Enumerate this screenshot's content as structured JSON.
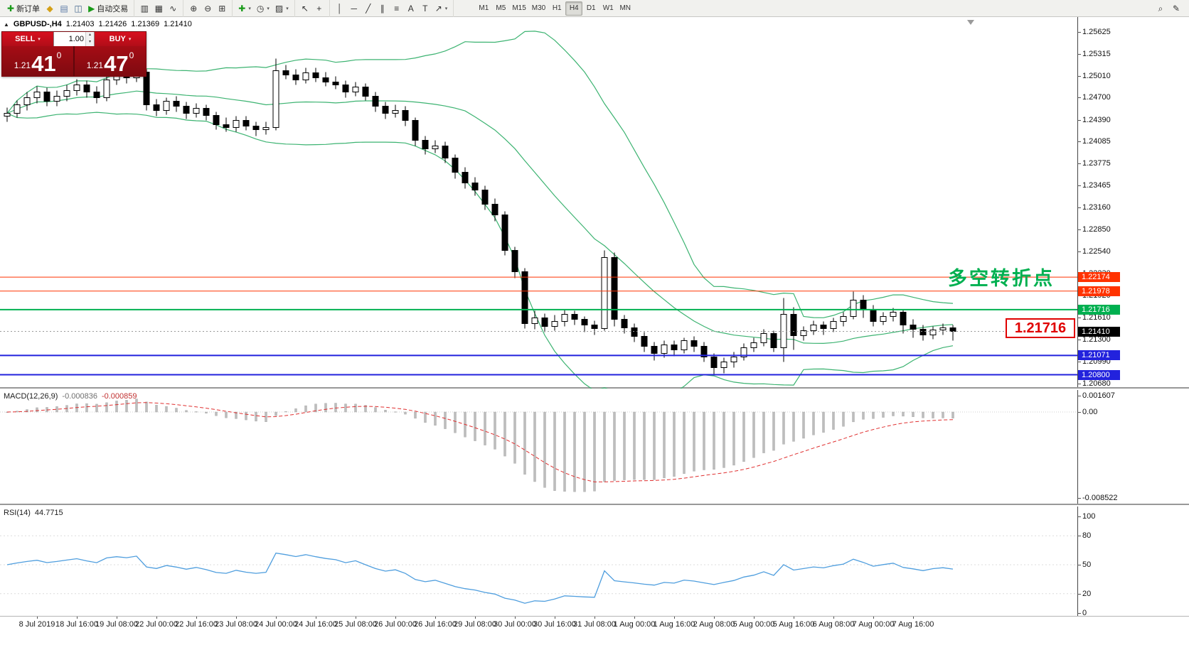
{
  "toolbar": {
    "new_order_label": "新订单",
    "autotrade_label": "自动交易",
    "timeframes": [
      "M1",
      "M5",
      "M15",
      "M30",
      "H1",
      "H4",
      "D1",
      "W1",
      "MN"
    ],
    "active_timeframe": "H4"
  },
  "icons": {
    "new_order": "✚",
    "profiles": "◆",
    "market_watch": "▤",
    "navigator": "◫",
    "autotrade_play": "▶",
    "chart_bars": "▥",
    "chart_candles": "▦",
    "chart_line": "∿",
    "zoom_in": "⊕",
    "zoom_out": "⊖",
    "tile_windows": "⊞",
    "indicators": "✚",
    "periods_clock": "◷",
    "templates": "▨",
    "cursor": "↖",
    "crosshair": "+",
    "vertical_line": "│",
    "horizontal_line": "─",
    "trendline": "╱",
    "channel": "∥",
    "fibonacci": "≡",
    "text": "A",
    "text_label": "T",
    "arrows": "↗",
    "dropdown": "▾",
    "spin_up": "▴",
    "spin_down": "▾",
    "collapse": "▲",
    "search": "⌕",
    "edit": "✎"
  },
  "symbol_header": {
    "symbol": "GBPUSD-,H4",
    "open": "1.21403",
    "high": "1.21426",
    "low": "1.21369",
    "close": "1.21410"
  },
  "trade_panel": {
    "sell_label": "SELL",
    "buy_label": "BUY",
    "volume": "1.00",
    "sell_price_prefix": "1.21",
    "sell_price_big": "41",
    "sell_price_sup": "0",
    "buy_price_prefix": "1.21",
    "buy_price_big": "47",
    "buy_price_sup": "0"
  },
  "annotations": {
    "turning_point": "多空转折点",
    "price_callout": "1.21716"
  },
  "price_scale": {
    "ticks": [
      "1.25625",
      "1.25315",
      "1.25010",
      "1.24700",
      "1.24390",
      "1.24085",
      "1.23775",
      "1.23465",
      "1.23160",
      "1.22850",
      "1.22540",
      "1.22230",
      "1.21920",
      "1.21610",
      "1.21300",
      "1.20990",
      "1.20680"
    ],
    "line_labels": [
      {
        "text": "1.22174",
        "color": "#ff3300"
      },
      {
        "text": "1.21978",
        "color": "#ff3300"
      },
      {
        "text": "1.21716",
        "color": "#00b050"
      },
      {
        "text": "1.21410",
        "color": "#000000"
      },
      {
        "text": "1.21071",
        "color": "#2222dd"
      },
      {
        "text": "1.20800",
        "color": "#2222dd"
      }
    ]
  },
  "macd": {
    "title": "MACD(12,26,9)",
    "value_main": "-0.000836",
    "value_signal": "-0.000859",
    "scale": [
      "0.001607",
      "0.00",
      "-0.008522"
    ]
  },
  "rsi": {
    "title": "RSI(14)",
    "value": "44.7715",
    "scale": [
      "100",
      "80",
      "50",
      "20",
      "0"
    ]
  },
  "time_axis": [
    "8 Jul 2019",
    "18 Jul 16:00",
    "19 Jul 08:00",
    "22 Jul 00:00",
    "22 Jul 16:00",
    "23 Jul 08:00",
    "24 Jul 00:00",
    "24 Jul 16:00",
    "25 Jul 08:00",
    "26 Jul 00:00",
    "26 Jul 16:00",
    "29 Jul 08:00",
    "30 Jul 00:00",
    "30 Jul 16:00",
    "31 Jul 08:00",
    "1 Aug 00:00",
    "1 Aug 16:00",
    "2 Aug 08:00",
    "5 Aug 00:00",
    "5 Aug 16:00",
    "6 Aug 08:00",
    "7 Aug 00:00",
    "7 Aug 16:00"
  ],
  "chart_data": {
    "type": "candlestick",
    "symbol": "GBPUSD",
    "timeframe": "H4",
    "price_range_visible": [
      1.206,
      1.25825
    ],
    "candles": [
      [
        1.2444,
        1.2456,
        1.2436,
        1.2448
      ],
      [
        1.2448,
        1.2466,
        1.2442,
        1.246
      ],
      [
        1.246,
        1.2478,
        1.2452,
        1.247
      ],
      [
        1.247,
        1.2486,
        1.2462,
        1.2478
      ],
      [
        1.2478,
        1.2484,
        1.2458,
        1.2465
      ],
      [
        1.2465,
        1.248,
        1.2458,
        1.2472
      ],
      [
        1.2472,
        1.2488,
        1.2465,
        1.248
      ],
      [
        1.248,
        1.2496,
        1.2473,
        1.2488
      ],
      [
        1.2488,
        1.2494,
        1.247,
        1.2478
      ],
      [
        1.2478,
        1.2486,
        1.2462,
        1.247
      ],
      [
        1.247,
        1.25,
        1.2465,
        1.2495
      ],
      [
        1.2495,
        1.251,
        1.2488,
        1.2502
      ],
      [
        1.2502,
        1.2509,
        1.249,
        1.2498
      ],
      [
        1.2498,
        1.2512,
        1.2492,
        1.2506
      ],
      [
        1.2506,
        1.251,
        1.2452,
        1.246
      ],
      [
        1.246,
        1.2468,
        1.2444,
        1.2452
      ],
      [
        1.2452,
        1.247,
        1.2446,
        1.2465
      ],
      [
        1.2465,
        1.2472,
        1.245,
        1.2458
      ],
      [
        1.2458,
        1.2464,
        1.244,
        1.2448
      ],
      [
        1.2448,
        1.2462,
        1.2442,
        1.2455
      ],
      [
        1.2455,
        1.246,
        1.2438,
        1.2445
      ],
      [
        1.2445,
        1.245,
        1.2425,
        1.2432
      ],
      [
        1.2432,
        1.2442,
        1.2422,
        1.2428
      ],
      [
        1.2428,
        1.2444,
        1.2422,
        1.2438
      ],
      [
        1.2438,
        1.2444,
        1.2424,
        1.243
      ],
      [
        1.243,
        1.2436,
        1.2416,
        1.2425
      ],
      [
        1.2425,
        1.2436,
        1.2418,
        1.2428
      ],
      [
        1.2428,
        1.2525,
        1.2424,
        1.2508
      ],
      [
        1.2508,
        1.2516,
        1.2496,
        1.2502
      ],
      [
        1.2502,
        1.251,
        1.2488,
        1.2495
      ],
      [
        1.2495,
        1.2512,
        1.249,
        1.2505
      ],
      [
        1.2505,
        1.2512,
        1.2492,
        1.2498
      ],
      [
        1.2498,
        1.2506,
        1.2486,
        1.2492
      ],
      [
        1.2492,
        1.25,
        1.2482,
        1.2488
      ],
      [
        1.2488,
        1.2494,
        1.247,
        1.2478
      ],
      [
        1.2478,
        1.2492,
        1.2472,
        1.2485
      ],
      [
        1.2485,
        1.249,
        1.2466,
        1.2472
      ],
      [
        1.2472,
        1.2478,
        1.245,
        1.2458
      ],
      [
        1.2458,
        1.2464,
        1.244,
        1.2448
      ],
      [
        1.2448,
        1.246,
        1.2442,
        1.2452
      ],
      [
        1.2452,
        1.2458,
        1.243,
        1.2438
      ],
      [
        1.2438,
        1.2442,
        1.2402,
        1.241
      ],
      [
        1.241,
        1.2416,
        1.239,
        1.2398
      ],
      [
        1.2398,
        1.241,
        1.2392,
        1.2402
      ],
      [
        1.2402,
        1.2408,
        1.2378,
        1.2385
      ],
      [
        1.2385,
        1.239,
        1.2356,
        1.2365
      ],
      [
        1.2365,
        1.2372,
        1.2342,
        1.235
      ],
      [
        1.235,
        1.2358,
        1.2332,
        1.234
      ],
      [
        1.234,
        1.2346,
        1.2312,
        1.232
      ],
      [
        1.232,
        1.2328,
        1.2296,
        1.2305
      ],
      [
        1.2305,
        1.231,
        1.2248,
        1.2255
      ],
      [
        1.2255,
        1.226,
        1.2216,
        1.2225
      ],
      [
        1.2225,
        1.223,
        1.2145,
        1.2152
      ],
      [
        1.2152,
        1.217,
        1.2144,
        1.216
      ],
      [
        1.216,
        1.2166,
        1.214,
        1.2148
      ],
      [
        1.2148,
        1.2164,
        1.2142,
        1.2155
      ],
      [
        1.2155,
        1.2172,
        1.2148,
        1.2165
      ],
      [
        1.2165,
        1.217,
        1.215,
        1.2158
      ],
      [
        1.2158,
        1.2162,
        1.214,
        1.215
      ],
      [
        1.215,
        1.2156,
        1.2136,
        1.2145
      ],
      [
        1.2145,
        1.2255,
        1.2142,
        1.2245
      ],
      [
        1.2245,
        1.2252,
        1.2148,
        1.2158
      ],
      [
        1.2158,
        1.2164,
        1.2138,
        1.2146
      ],
      [
        1.2146,
        1.2152,
        1.2126,
        1.2134
      ],
      [
        1.2134,
        1.214,
        1.2112,
        1.212
      ],
      [
        1.212,
        1.2126,
        1.21,
        1.211
      ],
      [
        1.211,
        1.2128,
        1.2104,
        1.2122
      ],
      [
        1.2122,
        1.2128,
        1.2106,
        1.2115
      ],
      [
        1.2115,
        1.2132,
        1.211,
        1.2128
      ],
      [
        1.2128,
        1.2134,
        1.2112,
        1.212
      ],
      [
        1.212,
        1.2126,
        1.2098,
        1.2105
      ],
      [
        1.2105,
        1.211,
        1.208,
        1.209
      ],
      [
        1.209,
        1.2104,
        1.2082,
        1.2098
      ],
      [
        1.2098,
        1.2112,
        1.209,
        1.2105
      ],
      [
        1.2105,
        1.2124,
        1.21,
        1.2118
      ],
      [
        1.2118,
        1.2132,
        1.2112,
        1.2125
      ],
      [
        1.2125,
        1.2144,
        1.212,
        1.2138
      ],
      [
        1.2138,
        1.2142,
        1.2112,
        1.2118
      ],
      [
        1.2118,
        1.2188,
        1.2098,
        1.2165
      ],
      [
        1.2165,
        1.2175,
        1.2115,
        1.2135
      ],
      [
        1.2135,
        1.2148,
        1.2128,
        1.2142
      ],
      [
        1.2142,
        1.2156,
        1.2136,
        1.215
      ],
      [
        1.215,
        1.2155,
        1.2136,
        1.2145
      ],
      [
        1.2145,
        1.216,
        1.214,
        1.2155
      ],
      [
        1.2155,
        1.2168,
        1.2148,
        1.2162
      ],
      [
        1.2162,
        1.2197,
        1.2158,
        1.2185
      ],
      [
        1.2185,
        1.2192,
        1.216,
        1.2172
      ],
      [
        1.2172,
        1.2178,
        1.2148,
        1.2155
      ],
      [
        1.2155,
        1.2168,
        1.215,
        1.2162
      ],
      [
        1.2162,
        1.2174,
        1.2155,
        1.2168
      ],
      [
        1.2168,
        1.2172,
        1.2138,
        1.215
      ],
      [
        1.215,
        1.2158,
        1.2132,
        1.2144
      ],
      [
        1.2144,
        1.215,
        1.2128,
        1.2136
      ],
      [
        1.2136,
        1.2148,
        1.213,
        1.2143
      ],
      [
        1.2143,
        1.2152,
        1.2136,
        1.2146
      ],
      [
        1.2146,
        1.215,
        1.2128,
        1.2141
      ]
    ],
    "overlays": {
      "bollinger": {
        "period": 20,
        "deviation": 2,
        "color": "#3cb371"
      },
      "hlines": [
        {
          "price": 1.22174,
          "color": "#ff3300",
          "width": 1
        },
        {
          "price": 1.21978,
          "color": "#ff3300",
          "width": 1
        },
        {
          "price": 1.21716,
          "color": "#00b050",
          "width": 2
        },
        {
          "price": 1.21071,
          "color": "#2222dd",
          "width": 2
        },
        {
          "price": 1.208,
          "color": "#2222dd",
          "width": 2
        }
      ],
      "current_price": 1.2141
    },
    "indicators": {
      "macd": {
        "fast": 12,
        "slow": 26,
        "signal": 9,
        "histogram_color": "#bdbdbd",
        "signal_color": "#e03030"
      },
      "rsi": {
        "period": 14,
        "color": "#4f9ede",
        "levels": [
          20,
          50,
          80
        ]
      }
    }
  }
}
